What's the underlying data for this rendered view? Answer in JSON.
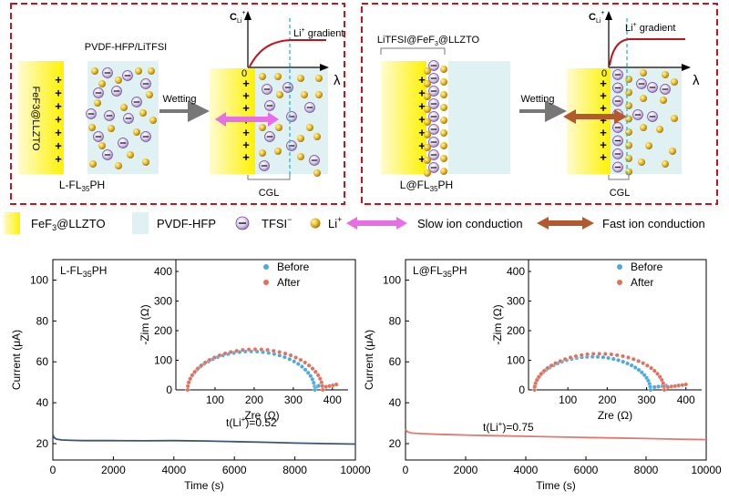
{
  "schematic": {
    "left": {
      "film_label": "PVDF-HFP/LiTFSI",
      "layer_label": "FeF3@LLZTO",
      "caption": "L-FL",
      "caption_sub": "35",
      "caption_suffix": "PH",
      "arrow_label": "Wetting",
      "gradient_axis_c": "C",
      "gradient_axis_c_sub": "Li",
      "gradient_axis_c_sup": "+",
      "gradient_label_prefix": "Li",
      "gradient_label_sup": "+",
      "gradient_label_suffix": " gradient",
      "origin": "0",
      "lambda": "λ",
      "cgl": "CGL",
      "plus_sign": "+"
    },
    "right": {
      "film_label_prefix": "LiTFSI@FeF",
      "film_label_sub": "3",
      "film_label_suffix": "@LLZTO",
      "caption": "L@FL",
      "caption_sub": "35",
      "caption_suffix": "PH",
      "arrow_label": "Wetting",
      "gradient_axis_c": "C",
      "gradient_axis_c_sub": "Li",
      "gradient_axis_c_sup": "+",
      "gradient_label_prefix": "Li",
      "gradient_label_sup": "+",
      "gradient_label_suffix": " gradient",
      "origin": "0",
      "lambda": "λ",
      "cgl": "CGL"
    }
  },
  "legend": {
    "fef3": "FeF",
    "fef3_sub": "3",
    "fef3_suffix": "@LLZTO",
    "pvdf": "PVDF-HFP",
    "tfsi": "TFSI",
    "tfsi_sup": "−",
    "li": "Li",
    "li_sup": "+",
    "slow": "Slow ion conduction",
    "fast": "Fast ion conduction"
  },
  "colors": {
    "dashed_border": "#c8151b",
    "yellow": "#fff200",
    "film": "#dff1f3",
    "slow_arrow": "#e86ee4",
    "fast_arrow": "#b25a2e",
    "gradient_curve": "#c0141a",
    "cgl_line": "#29b5d6",
    "before": "#4aa9e1",
    "after": "#e2705a",
    "left_curve": "#3c5572",
    "right_curve": "#e07a70"
  },
  "chart_data": [
    {
      "type": "line",
      "panel_label": "L-FL",
      "panel_label_sub": "35",
      "panel_label_suffix": "PH",
      "xlabel": "Time (s)",
      "ylabel": "Current (μA)",
      "xlim": [
        0,
        10000
      ],
      "ylim": [
        12,
        110
      ],
      "xticks": [
        0,
        2000,
        4000,
        6000,
        8000,
        10000
      ],
      "yticks": [
        20,
        40,
        60,
        80,
        100
      ],
      "annotation": "t(Li+)=0.52",
      "annotation_prefix": "t(Li",
      "annotation_sup": "+",
      "annotation_suffix": ")=0.52",
      "series": [
        {
          "x": [
            0,
            40,
            120,
            300,
            600,
            1000,
            2000,
            3000,
            4000,
            5000,
            6000,
            7000,
            8000,
            9000,
            10000
          ],
          "values": [
            24.5,
            23.0,
            22.2,
            21.8,
            21.6,
            21.5,
            21.5,
            21.4,
            21.5,
            21.3,
            21.0,
            20.7,
            20.3,
            20.0,
            19.8
          ]
        }
      ],
      "inset": {
        "type": "scatter",
        "xlabel": "Zre (Ω)",
        "ylabel": "-Zim (Ω)",
        "xlim": [
          0,
          440
        ],
        "ylim": [
          0,
          440
        ],
        "xticks": [
          100,
          200,
          300,
          400
        ],
        "yticks": [
          0,
          100,
          200,
          300,
          400
        ],
        "series": [
          {
            "name": "Before",
            "arc": {
              "start": 30,
              "end": 355,
              "peak": 130,
              "tail_end": 365
            }
          },
          {
            "name": "After",
            "arc": {
              "start": 30,
              "end": 375,
              "peak": 137,
              "tail_end": 410
            }
          }
        ]
      }
    },
    {
      "type": "line",
      "panel_label": "L@FL",
      "panel_label_sub": "35",
      "panel_label_suffix": "PH",
      "xlabel": "Time (s)",
      "ylabel": "Current (μA)",
      "xlim": [
        0,
        10000
      ],
      "ylim": [
        12,
        110
      ],
      "xticks": [
        0,
        2000,
        4000,
        6000,
        8000,
        10000
      ],
      "yticks": [
        20,
        40,
        60,
        80,
        100
      ],
      "annotation_prefix": "t(Li",
      "annotation_sup": "+",
      "annotation_suffix": ")=0.75",
      "series": [
        {
          "x": [
            0,
            60,
            200,
            500,
            1000,
            2000,
            3000,
            4000,
            5000,
            6000,
            7000,
            8000,
            9000,
            10000
          ],
          "values": [
            27.0,
            25.8,
            25.2,
            24.9,
            24.6,
            24.2,
            23.9,
            23.6,
            23.3,
            23.0,
            22.8,
            22.5,
            22.2,
            22.0
          ]
        }
      ],
      "inset": {
        "type": "scatter",
        "xlabel": "Zre (Ω)",
        "ylabel": "-Zim (Ω)",
        "xlim": [
          0,
          440
        ],
        "ylim": [
          0,
          440
        ],
        "xticks": [
          100,
          200,
          300,
          400
        ],
        "yticks": [
          0,
          100,
          200,
          300,
          400
        ],
        "series": [
          {
            "name": "Before",
            "arc": {
              "start": 15,
              "end": 310,
              "peak": 112,
              "tail_end": 350
            }
          },
          {
            "name": "After",
            "arc": {
              "start": 15,
              "end": 345,
              "peak": 122,
              "tail_end": 400
            }
          }
        ]
      }
    }
  ]
}
